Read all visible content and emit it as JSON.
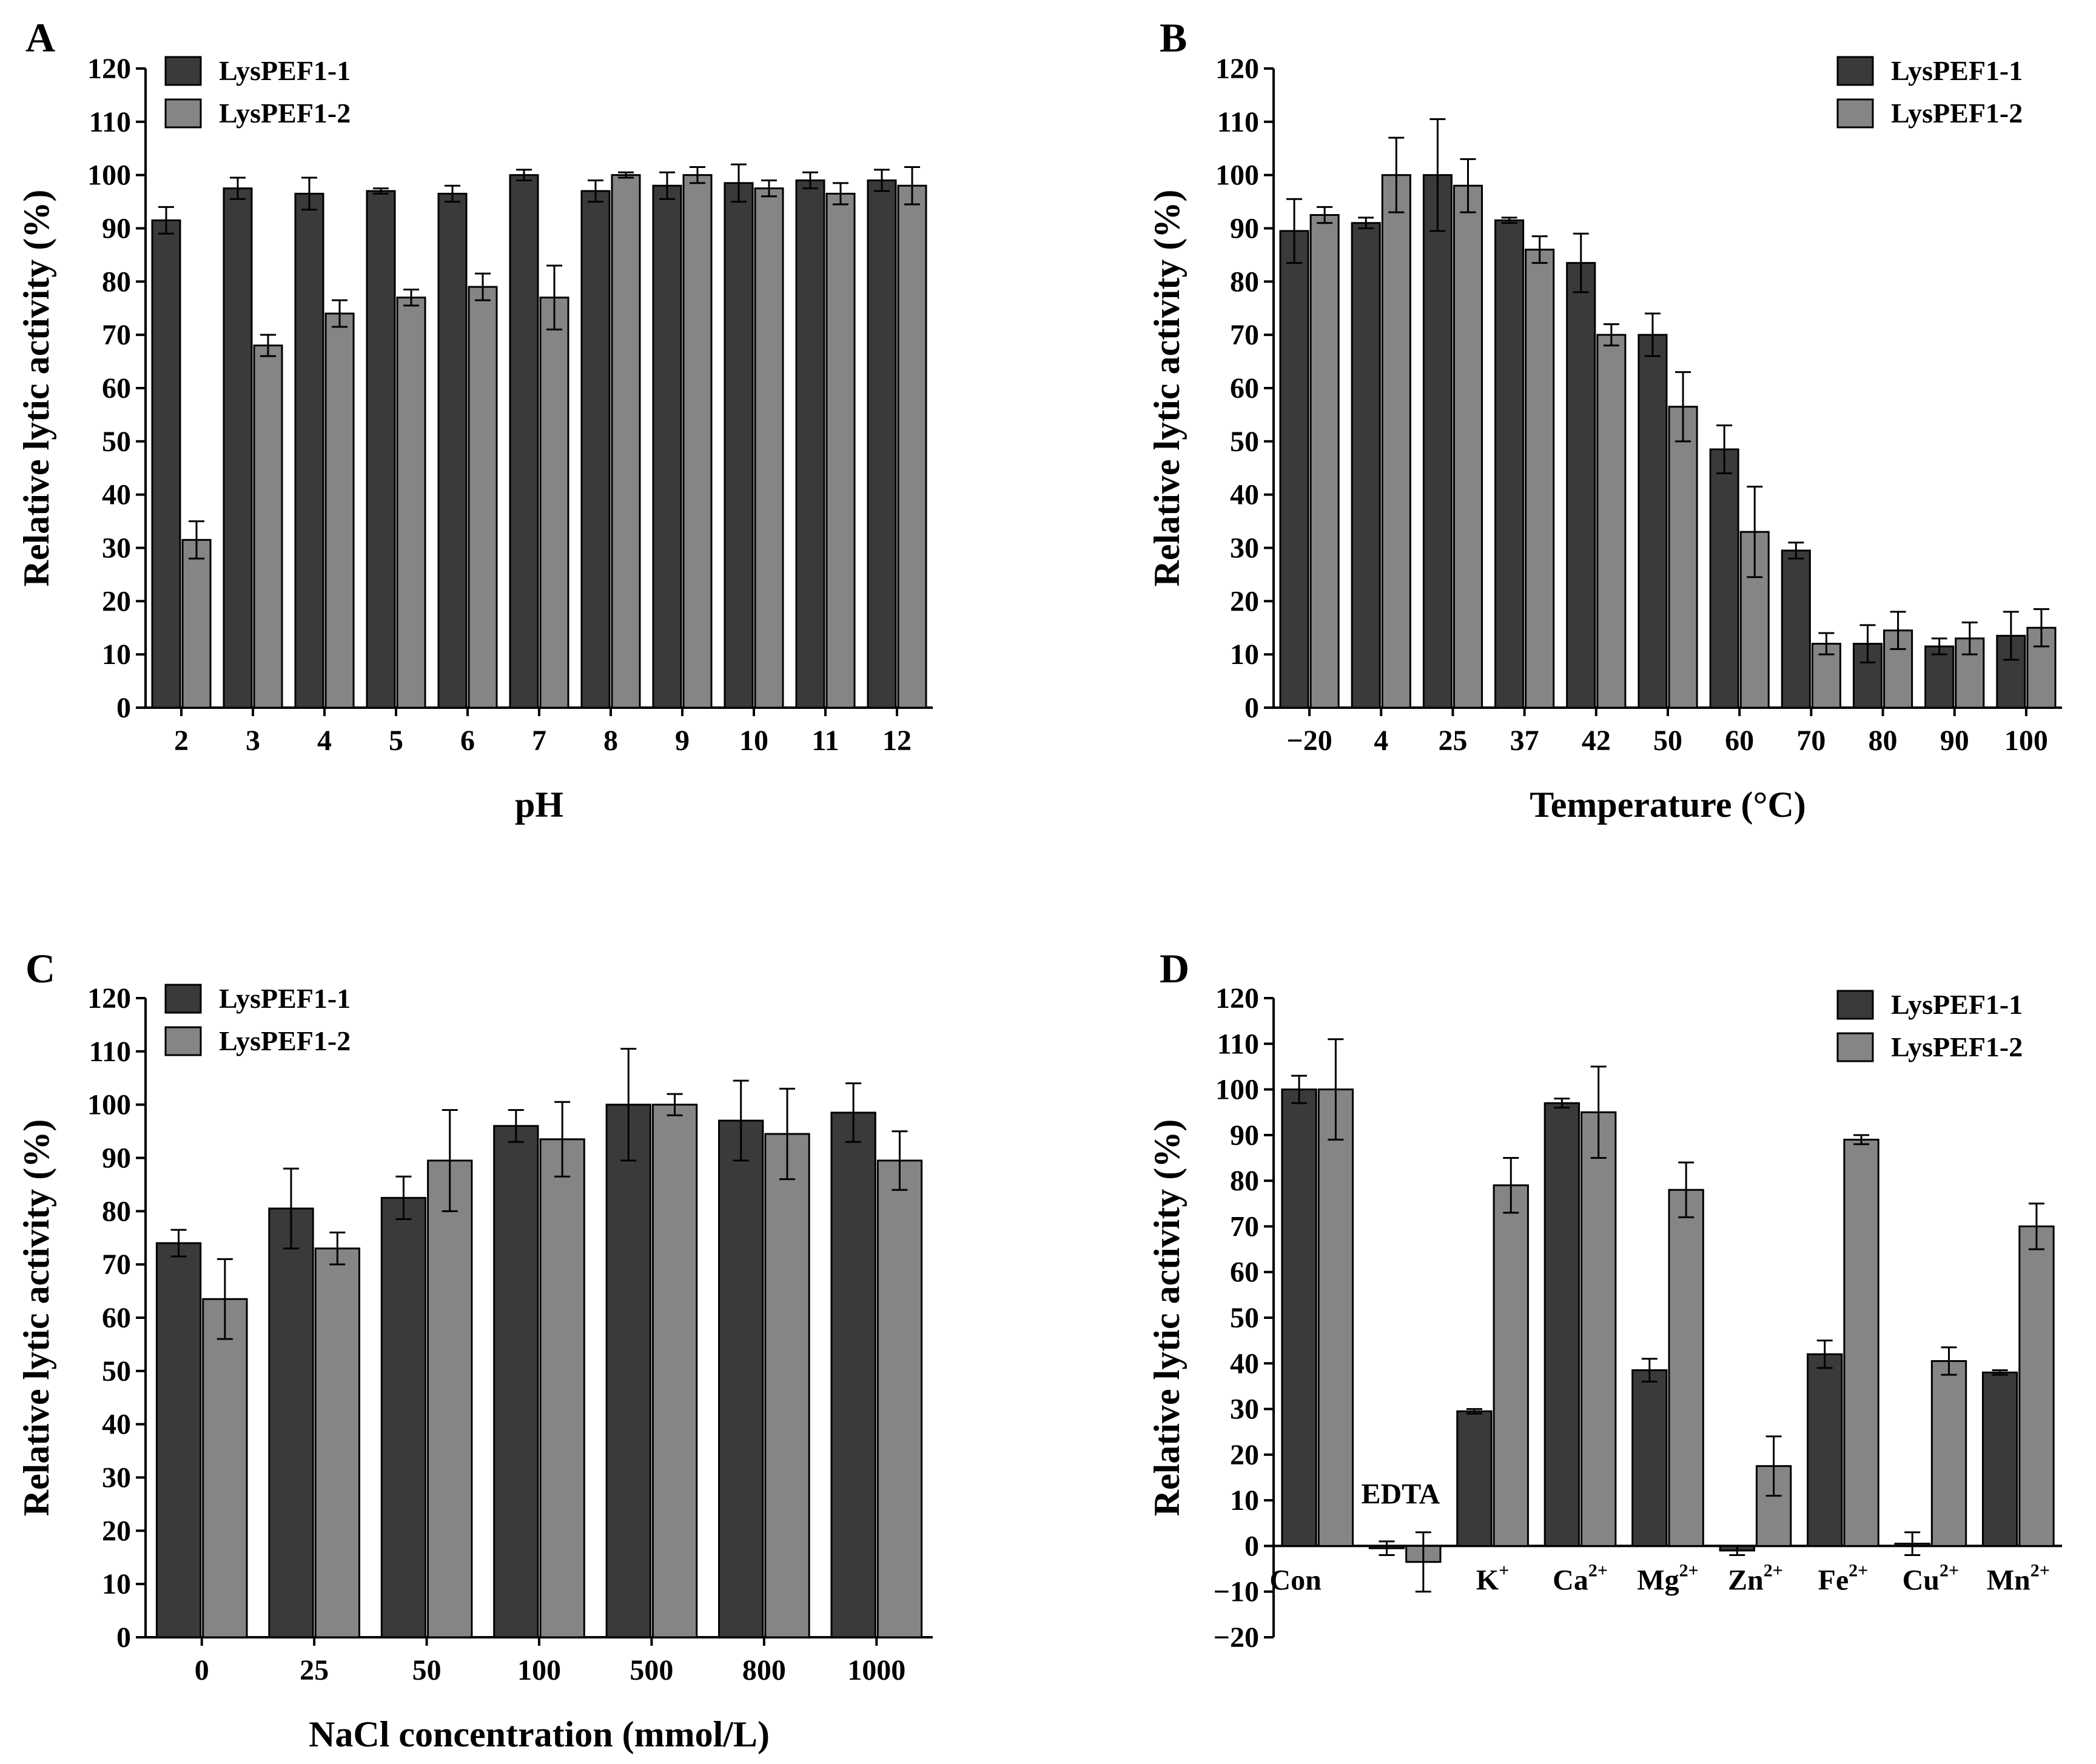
{
  "colors": {
    "series1": "#3a3a3a",
    "series2": "#858585",
    "axis": "#000000",
    "background": "#ffffff"
  },
  "chart_data": [
    {
      "panel": "A",
      "type": "bar",
      "xlabel": "pH",
      "ylabel": "Relative lytic activity (%)",
      "ylim": [
        0,
        120
      ],
      "yticks": [
        0,
        10,
        20,
        30,
        40,
        50,
        60,
        70,
        80,
        90,
        100,
        110,
        120
      ],
      "categories": [
        "2",
        "3",
        "4",
        "5",
        "6",
        "7",
        "8",
        "9",
        "10",
        "11",
        "12"
      ],
      "legend_position": "top-left",
      "series": [
        {
          "name": "LysPEF1-1",
          "values": [
            91.5,
            97.5,
            96.5,
            97,
            96.5,
            100,
            97,
            98,
            98.5,
            99,
            99
          ],
          "errors": [
            2.5,
            2,
            3,
            0.5,
            1.5,
            1,
            2,
            2.5,
            3.5,
            1.5,
            2
          ]
        },
        {
          "name": "LysPEF1-2",
          "values": [
            31.5,
            68,
            74,
            77,
            79,
            77,
            100,
            100,
            97.5,
            96.5,
            98
          ],
          "errors": [
            3.5,
            2,
            2.5,
            1.5,
            2.5,
            6,
            0.5,
            1.5,
            1.5,
            2,
            3.5
          ]
        }
      ]
    },
    {
      "panel": "B",
      "type": "bar",
      "xlabel": "Temperature (°C)",
      "ylabel": "Relative lytic activity (%)",
      "ylim": [
        0,
        120
      ],
      "yticks": [
        0,
        10,
        20,
        30,
        40,
        50,
        60,
        70,
        80,
        90,
        100,
        110,
        120
      ],
      "categories": [
        "−20",
        "4",
        "25",
        "37",
        "42",
        "50",
        "60",
        "70",
        "80",
        "90",
        "100"
      ],
      "legend_position": "top-right",
      "series": [
        {
          "name": "LysPEF1-1",
          "values": [
            89.5,
            91,
            100,
            91.5,
            83.5,
            70,
            48.5,
            29.5,
            12,
            11.5,
            13.5
          ],
          "errors": [
            6,
            1,
            10.5,
            0.5,
            5.5,
            4,
            4.5,
            1.5,
            3.5,
            1.5,
            4.5
          ]
        },
        {
          "name": "LysPEF1-2",
          "values": [
            92.5,
            100,
            98,
            86,
            70,
            56.5,
            33,
            12,
            14.5,
            13,
            15
          ],
          "errors": [
            1.5,
            7,
            5,
            2.5,
            2,
            6.5,
            8.5,
            2,
            3.5,
            3,
            3.5
          ]
        }
      ]
    },
    {
      "panel": "C",
      "type": "bar",
      "xlabel": "NaCl concentration (mmol/L)",
      "ylabel": "Relative lytic activity (%)",
      "ylim": [
        0,
        120
      ],
      "yticks": [
        0,
        10,
        20,
        30,
        40,
        50,
        60,
        70,
        80,
        90,
        100,
        110,
        120
      ],
      "categories": [
        "0",
        "25",
        "50",
        "100",
        "500",
        "800",
        "1000"
      ],
      "legend_position": "top-left",
      "series": [
        {
          "name": "LysPEF1-1",
          "values": [
            74,
            80.5,
            82.5,
            96,
            100,
            97,
            98.5
          ],
          "errors": [
            2.5,
            7.5,
            4,
            3,
            10.5,
            7.5,
            5.5
          ]
        },
        {
          "name": "LysPEF1-2",
          "values": [
            63.5,
            73,
            89.5,
            93.5,
            100,
            94.5,
            89.5
          ],
          "errors": [
            7.5,
            3,
            9.5,
            7,
            2,
            8.5,
            5.5
          ]
        }
      ]
    },
    {
      "panel": "D",
      "type": "bar",
      "xlabel": "",
      "ylabel": "Relative lytic activity (%)",
      "ylim": [
        -20,
        120
      ],
      "yticks": [
        -20,
        -10,
        0,
        10,
        20,
        30,
        40,
        50,
        60,
        70,
        80,
        90,
        100,
        110,
        120
      ],
      "categories": [
        {
          "base": "Con",
          "sup": ""
        },
        {
          "base": "EDTA",
          "sup": ""
        },
        {
          "base": "K",
          "sup": "+"
        },
        {
          "base": "Ca",
          "sup": "2+"
        },
        {
          "base": "Mg",
          "sup": "2+"
        },
        {
          "base": "Zn",
          "sup": "2+"
        },
        {
          "base": "Fe",
          "sup": "2+"
        },
        {
          "base": "Cu",
          "sup": "2+"
        },
        {
          "base": "Mn",
          "sup": "2+"
        }
      ],
      "legend_position": "top-right",
      "series": [
        {
          "name": "LysPEF1-1",
          "values": [
            100,
            -0.5,
            29.5,
            97,
            38.5,
            -1,
            42,
            0.5,
            38
          ],
          "errors": [
            3,
            1.5,
            0.5,
            1,
            2.5,
            1,
            3,
            2.5,
            0.5
          ]
        },
        {
          "name": "LysPEF1-2",
          "values": [
            100,
            -3.5,
            79,
            95,
            78,
            17.5,
            89,
            40.5,
            70
          ],
          "errors": [
            11,
            6.5,
            6,
            10,
            6,
            6.5,
            1,
            3,
            5
          ]
        }
      ]
    }
  ]
}
